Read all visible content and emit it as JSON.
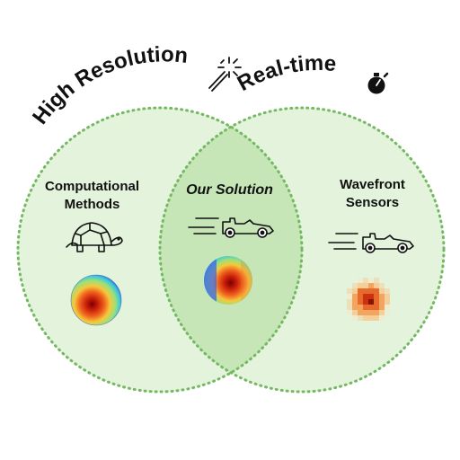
{
  "arc_titles": {
    "left": "High Resolution",
    "right": "Real-time"
  },
  "regions": {
    "left": {
      "line1": "Computational",
      "line2": "Methods"
    },
    "center": {
      "label": "Our Solution"
    },
    "right": {
      "line1": "Wavefront",
      "line2": "Sensors"
    }
  },
  "icons": {
    "left_title": "magic-wand-sparkle-icon",
    "right_title": "stopwatch-icon",
    "left_region": "turtle-icon",
    "center_region": "race-car-icon",
    "right_region": "race-car-icon"
  },
  "colors": {
    "circle_fill": "#e3f3dc",
    "overlap_fill": "#c6e6b8",
    "circle_outline": "#74b861"
  }
}
